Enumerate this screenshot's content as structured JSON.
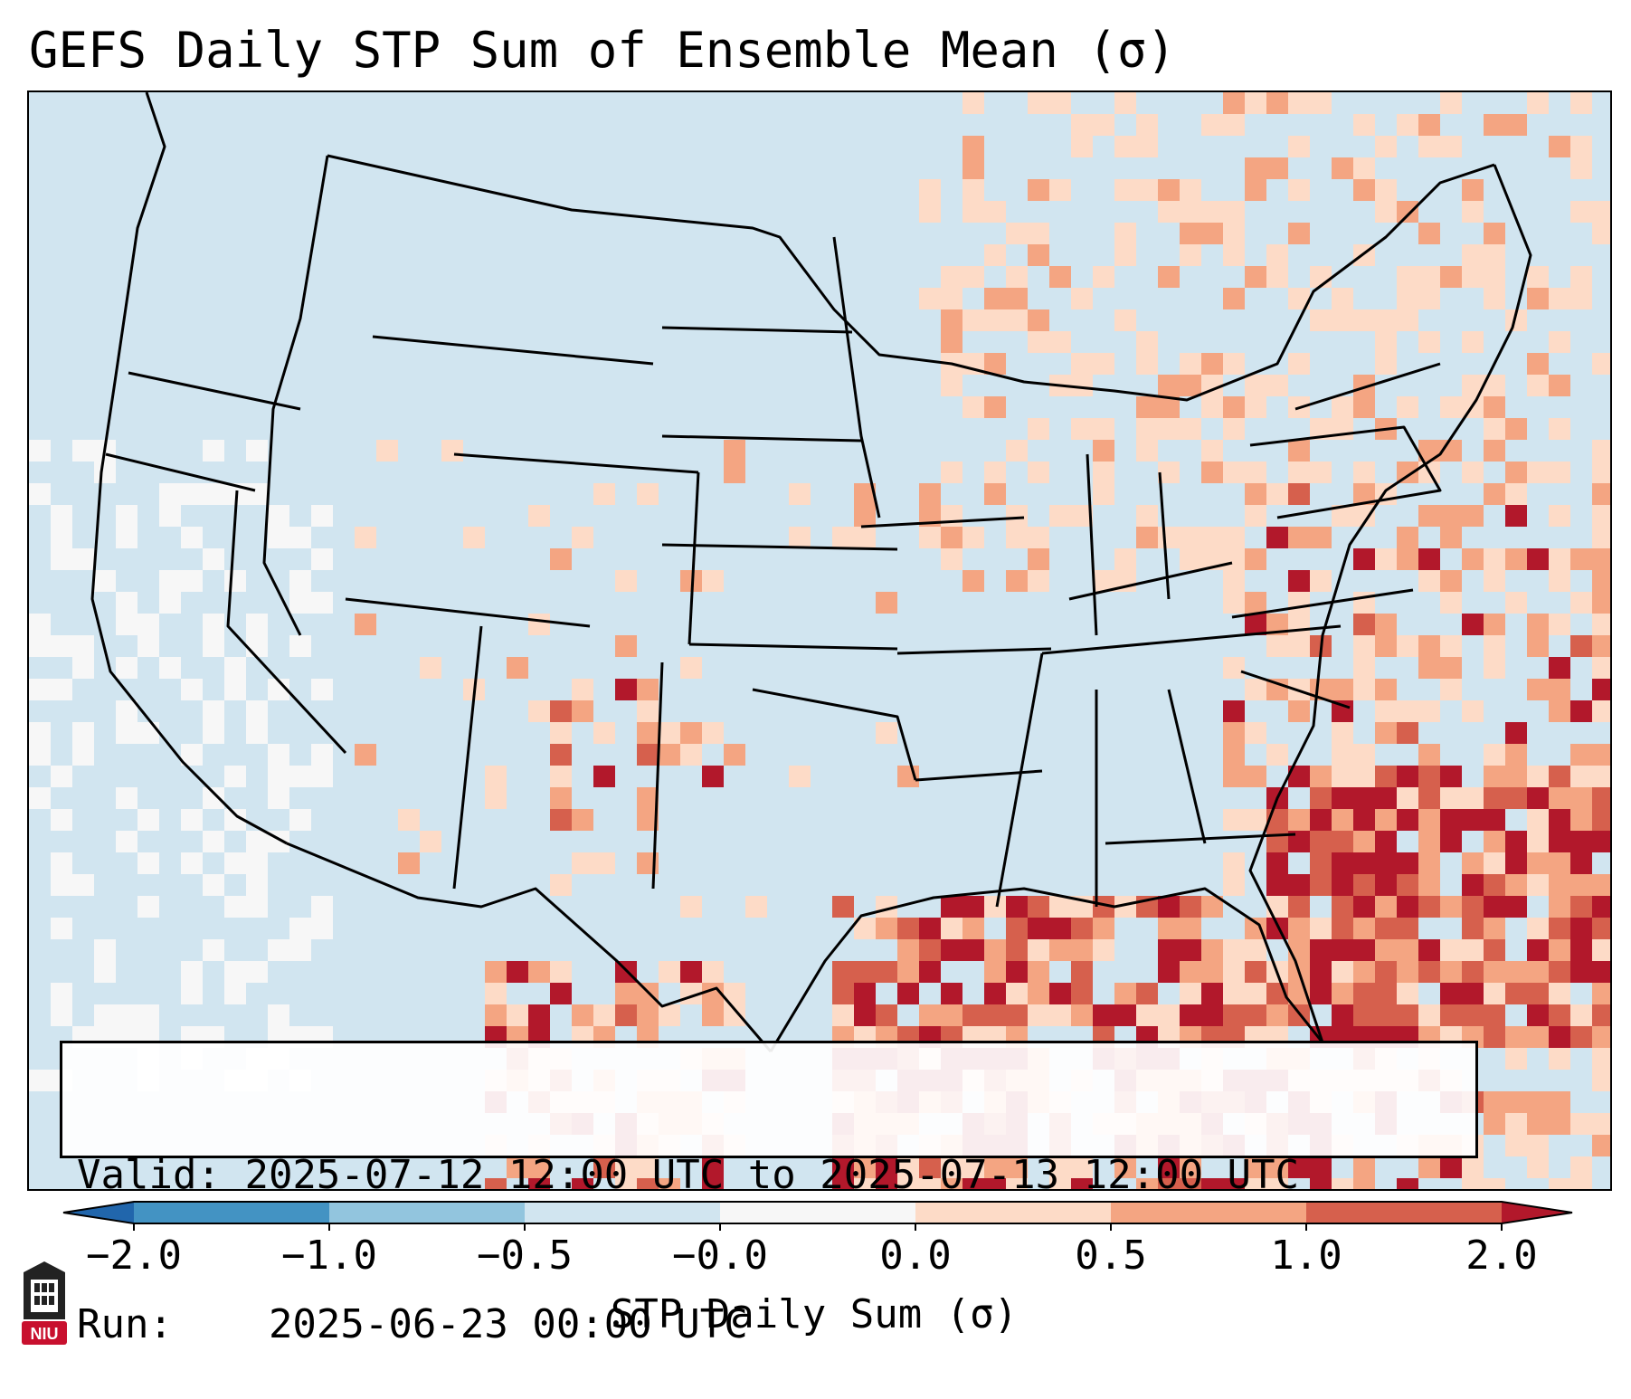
{
  "title": "GEFS Daily STP Sum of Ensemble Mean (σ)",
  "info": {
    "valid_label": "Valid:",
    "valid_value": "2025-07-12 12:00 UTC to 2025-07-13 12:00 UTC",
    "run_label": "Run:",
    "run_value": "2025-06-23 00:00 UTC"
  },
  "colorbar": {
    "label": "STP Daily Sum (σ)",
    "ticks": [
      "−2.0",
      "−1.0",
      "−0.5",
      "−0.0",
      "0.0",
      "0.5",
      "1.0",
      "2.0"
    ],
    "bin_colors": [
      "#4393c3",
      "#92c5de",
      "#d1e5f0",
      "#f7f7f7",
      "#fddbc7",
      "#f4a582",
      "#d6604d"
    ],
    "under_color": "#2166ac",
    "over_color": "#b2182b"
  },
  "map": {
    "background_color": "#d1e5f0",
    "region": "CONUS"
  },
  "logo": {
    "text": "NIU",
    "color": "#c8102e"
  }
}
